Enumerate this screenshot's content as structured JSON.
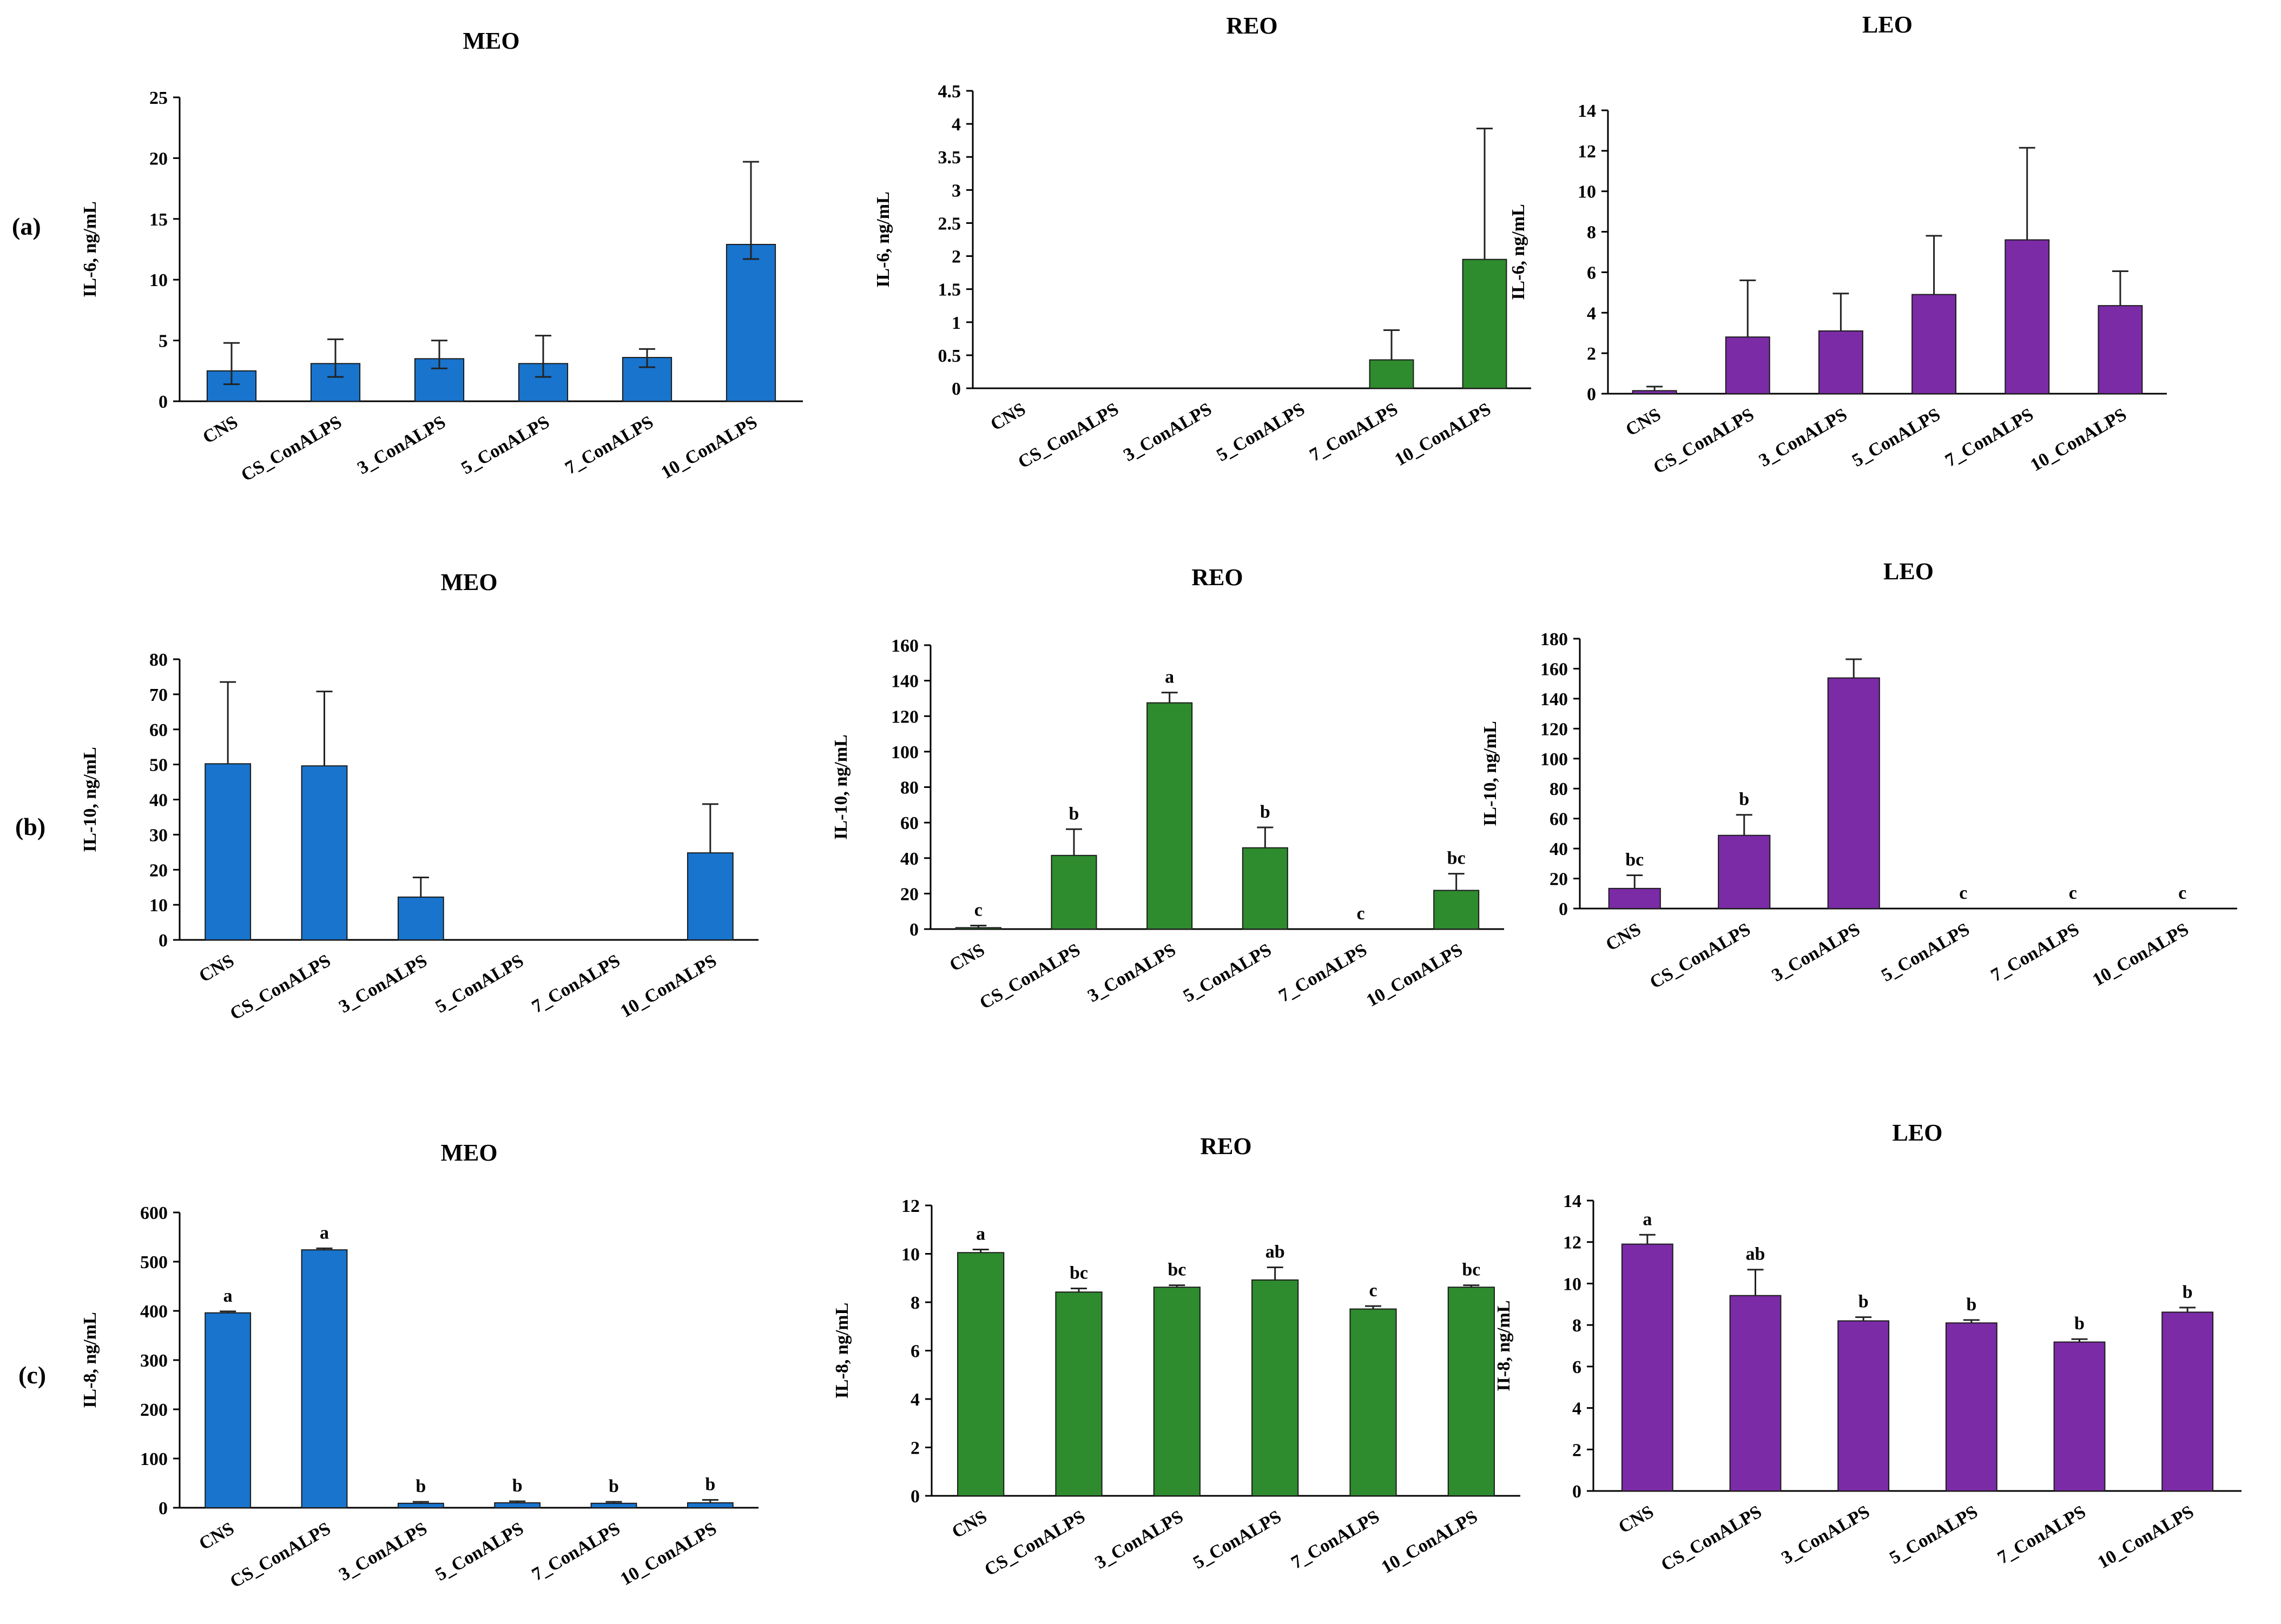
{
  "row_labels": [
    "(a)",
    "(b)",
    "(c)"
  ],
  "chart_data": [
    {
      "type": "bar",
      "title": "MEO",
      "ylabel": "IL-6, ng/mL",
      "ylim": [
        0,
        25
      ],
      "yticks": [
        0,
        5,
        10,
        15,
        20,
        25
      ],
      "color": "#1874CD",
      "categories": [
        "CNS",
        "CS_ConALPS",
        "3_ConALPS",
        "5_ConALPS",
        "7_ConALPS",
        "10_ConALPS"
      ],
      "values": [
        2.5,
        3.1,
        3.5,
        3.1,
        3.6,
        12.9
      ],
      "err_low": [
        1.1,
        1.1,
        0.8,
        1.1,
        0.8,
        1.2
      ],
      "err_high": [
        2.3,
        2.0,
        1.5,
        2.3,
        0.7,
        6.8
      ],
      "letters": [
        "",
        "",
        "",
        "",
        "",
        ""
      ]
    },
    {
      "type": "bar",
      "title": "REO",
      "ylabel": "IL-6, ng/mL",
      "ylim": [
        0,
        4.5
      ],
      "yticks": [
        0,
        0.5,
        1,
        1.5,
        2,
        2.5,
        3,
        3.5,
        4,
        4.5
      ],
      "color": "#2E8B2E",
      "categories": [
        "CNS",
        "CS_ConALPS",
        "3_ConALPS",
        "5_ConALPS",
        "7_ConALPS",
        "10_ConALPS"
      ],
      "values": [
        0,
        0,
        0,
        0,
        0.43,
        1.95
      ],
      "err_low": [
        0,
        0,
        0,
        0,
        0,
        0
      ],
      "err_high": [
        0,
        0,
        0,
        0,
        0.45,
        1.98
      ],
      "letters": [
        "",
        "",
        "",
        "",
        "",
        ""
      ]
    },
    {
      "type": "bar",
      "title": "LEO",
      "ylabel": "IL-6, ng/mL",
      "ylim": [
        0,
        14
      ],
      "yticks": [
        0,
        2,
        4,
        6,
        8,
        10,
        12,
        14
      ],
      "color": "#7B2BA6",
      "categories": [
        "CNS",
        "CS_ConALPS",
        "3_ConALPS",
        "5_ConALPS",
        "7_ConALPS",
        "10_ConALPS"
      ],
      "values": [
        0.15,
        2.8,
        3.1,
        4.9,
        7.6,
        4.35
      ],
      "err_low": [
        0,
        0,
        0,
        0,
        0,
        0
      ],
      "err_high": [
        0.2,
        2.8,
        1.85,
        2.9,
        4.55,
        1.7
      ],
      "letters": [
        "",
        "",
        "",
        "",
        "",
        ""
      ]
    },
    {
      "type": "bar",
      "title": "MEO",
      "ylabel": "IL-10, ng/mL",
      "ylim": [
        0,
        80
      ],
      "yticks": [
        0,
        10,
        20,
        30,
        40,
        50,
        60,
        70,
        80
      ],
      "color": "#1874CD",
      "categories": [
        "CNS",
        "CS_ConALPS",
        "3_ConALPS",
        "5_ConALPS",
        "7_ConALPS",
        "10_ConALPS"
      ],
      "values": [
        50.2,
        49.6,
        12.2,
        0,
        0,
        24.8
      ],
      "err_low": [
        0,
        0,
        0,
        0,
        0,
        0
      ],
      "err_high": [
        23.3,
        21.2,
        5.6,
        0,
        0,
        13.9
      ],
      "letters": [
        "",
        "",
        "",
        "",
        "",
        ""
      ]
    },
    {
      "type": "bar",
      "title": "REO",
      "ylabel": "IL-10, ng/mL",
      "ylim": [
        0,
        160
      ],
      "yticks": [
        0,
        20,
        40,
        60,
        80,
        100,
        120,
        140,
        160
      ],
      "color": "#2E8B2E",
      "categories": [
        "CNS",
        "CS_ConALPS",
        "3_ConALPS",
        "5_ConALPS",
        "7_ConALPS",
        "10_ConALPS"
      ],
      "values": [
        0.8,
        41.5,
        127.5,
        45.8,
        0,
        21.8
      ],
      "err_low": [
        0,
        0,
        0,
        0,
        0,
        0
      ],
      "err_high": [
        1.2,
        14.8,
        5.8,
        11.5,
        0,
        9.4
      ],
      "letters": [
        "c",
        "b",
        "a",
        "b",
        "c",
        "bc"
      ]
    },
    {
      "type": "bar",
      "title": "LEO",
      "ylabel": "IL-10, ng/mL",
      "ylim": [
        0,
        180
      ],
      "yticks": [
        0,
        20,
        40,
        60,
        80,
        100,
        120,
        140,
        160,
        180
      ],
      "color": "#7B2BA6",
      "categories": [
        "CNS",
        "CS_ConALPS",
        "3_ConALPS",
        "5_ConALPS",
        "7_ConALPS",
        "10_ConALPS"
      ],
      "values": [
        13.4,
        48.8,
        153.8,
        0,
        0,
        0
      ],
      "err_low": [
        0,
        0,
        0,
        0,
        0,
        0
      ],
      "err_high": [
        8.8,
        13.7,
        12.5,
        0,
        0,
        0
      ],
      "letters": [
        "bc",
        "b",
        "",
        "c",
        "c",
        "c"
      ]
    },
    {
      "type": "bar",
      "title": "MEO",
      "ylabel": "IL-8, ng/mL",
      "ylim": [
        0,
        600
      ],
      "yticks": [
        0,
        100,
        200,
        300,
        400,
        500,
        600
      ],
      "color": "#1874CD",
      "categories": [
        "CNS",
        "CS_ConALPS",
        "3_ConALPS",
        "5_ConALPS",
        "7_ConALPS",
        "10_ConALPS"
      ],
      "values": [
        396,
        524,
        9,
        10,
        9,
        10
      ],
      "err_low": [
        0,
        0,
        0,
        0,
        0,
        0
      ],
      "err_high": [
        3,
        3,
        3,
        3,
        3,
        6
      ],
      "letters": [
        "a",
        "a",
        "b",
        "b",
        "b",
        "b"
      ]
    },
    {
      "type": "bar",
      "title": "REO",
      "ylabel": "IL-8, ng/mL",
      "ylim": [
        0,
        12
      ],
      "yticks": [
        0,
        2,
        4,
        6,
        8,
        10,
        12
      ],
      "color": "#2E8B2E",
      "categories": [
        "CNS",
        "CS_ConALPS",
        "3_ConALPS",
        "5_ConALPS",
        "7_ConALPS",
        "10_ConALPS"
      ],
      "values": [
        10.05,
        8.42,
        8.62,
        8.92,
        7.72,
        8.62
      ],
      "err_low": [
        0,
        0,
        0,
        0,
        0,
        0
      ],
      "err_high": [
        0.13,
        0.15,
        0.08,
        0.52,
        0.12,
        0.08
      ],
      "letters": [
        "a",
        "bc",
        "bc",
        "ab",
        "c",
        "bc"
      ]
    },
    {
      "type": "bar",
      "title": "LEO",
      "ylabel": "II-8, ng/mL",
      "ylim": [
        0,
        14
      ],
      "yticks": [
        0,
        2,
        4,
        6,
        8,
        10,
        12,
        14
      ],
      "color": "#7B2BA6",
      "categories": [
        "CNS",
        "CS_ConALPS",
        "3_ConALPS",
        "5_ConALPS",
        "7_ConALPS",
        "10_ConALPS"
      ],
      "values": [
        11.9,
        9.42,
        8.2,
        8.1,
        7.18,
        8.62
      ],
      "err_low": [
        0,
        0,
        0,
        0,
        0,
        0
      ],
      "err_high": [
        0.45,
        1.25,
        0.18,
        0.14,
        0.14,
        0.22
      ],
      "letters": [
        "a",
        "ab",
        "b",
        "b",
        "b",
        "b"
      ]
    }
  ]
}
